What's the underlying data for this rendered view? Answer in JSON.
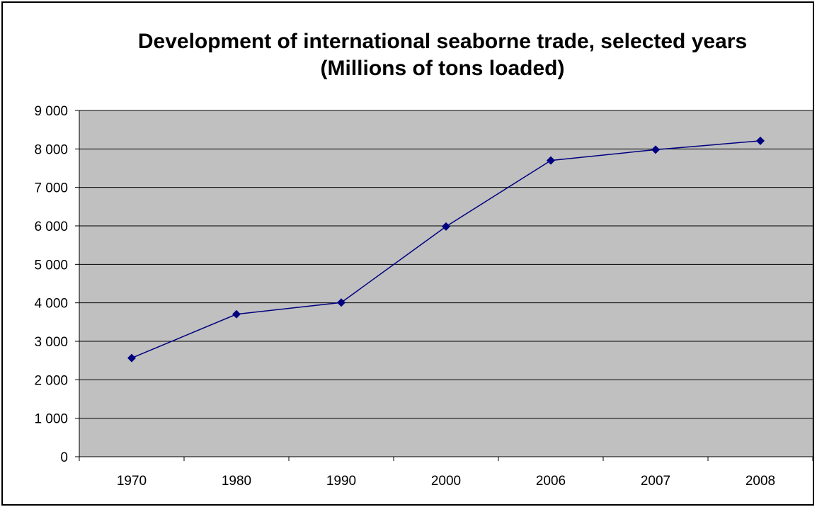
{
  "chart_data": {
    "type": "line",
    "title_line1": "Development of international seaborne trade, selected years",
    "title_line2": "(Millions of tons loaded)",
    "categories": [
      "1970",
      "1980",
      "1990",
      "2000",
      "2006",
      "2007",
      "2008"
    ],
    "series": [
      {
        "values": [
          2566,
          3704,
          4008,
          5984,
          7700,
          7981,
          8210
        ]
      }
    ],
    "ylim": [
      0,
      9000
    ],
    "yticks": [
      "0",
      "1 000",
      "2 000",
      "3 000",
      "4 000",
      "5 000",
      "6 000",
      "7 000",
      "8 000",
      "9 000"
    ],
    "grid": true,
    "colors": {
      "plot_background": "#c0c0c0",
      "line": "#000080",
      "marker": "#000080",
      "gridline": "#000000"
    }
  }
}
